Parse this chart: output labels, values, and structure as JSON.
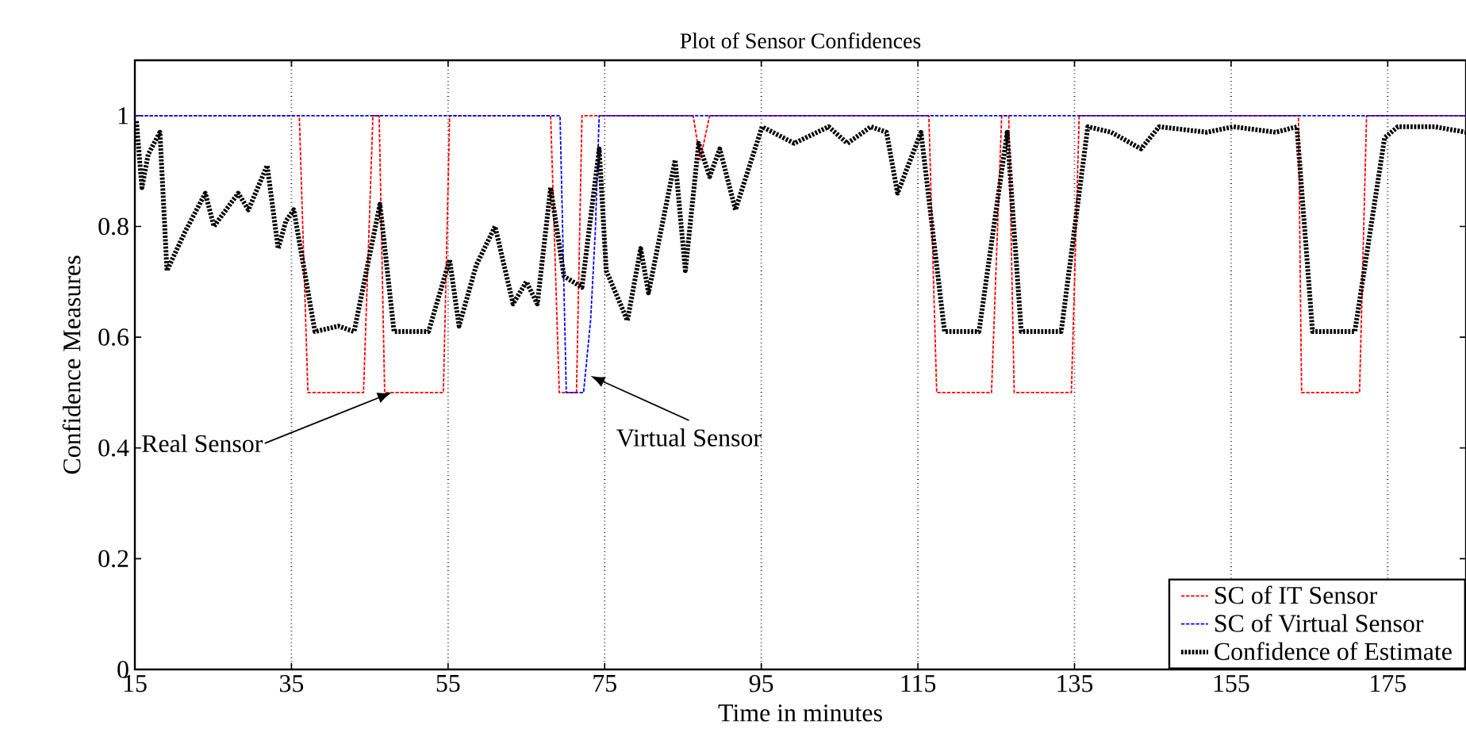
{
  "chart_data": {
    "type": "line",
    "title": "Plot of Sensor Confidences",
    "xlabel": "Time in minutes",
    "ylabel": "Confidence Measures",
    "xlim": [
      15,
      185
    ],
    "ylim": [
      0,
      1.1
    ],
    "xticks": [
      15,
      35,
      55,
      75,
      95,
      115,
      135,
      155,
      175
    ],
    "yticks": [
      0,
      0.2,
      0.4,
      0.6,
      0.8,
      1
    ],
    "grid": "x",
    "legend": "bottom right",
    "series": [
      {
        "name": "SC of IT Sensor",
        "color": "#ff0000",
        "line_style": "dashed",
        "x": [
          15,
          36.0,
          37.1,
          44.2,
          45.4,
          46.2,
          46.9,
          54.4,
          55.2,
          68.1,
          69.2,
          71.4,
          72.1,
          86.3,
          87.2,
          88.4,
          116.4,
          117.4,
          124.4,
          125.7,
          126.6,
          127.3,
          134.6,
          135.6,
          163.6,
          164.0,
          171.4,
          172.3,
          185
        ],
        "values": [
          1,
          1,
          0.5,
          0.5,
          1,
          1,
          0.5,
          0.5,
          1,
          1,
          0.5,
          0.5,
          1,
          1,
          0.92,
          1,
          1,
          0.5,
          0.5,
          1,
          1,
          0.5,
          0.5,
          1,
          1,
          0.5,
          0.5,
          1,
          1
        ]
      },
      {
        "name": "SC of Virtual Sensor",
        "color": "#0000ff",
        "line_style": "dashed",
        "x": [
          15,
          69.3,
          70.1,
          72.3,
          73.2,
          73.8,
          74.3,
          185
        ],
        "values": [
          1,
          1,
          0.5,
          0.5,
          0.63,
          0.79,
          1,
          1
        ]
      },
      {
        "name": "Confidence of Estimate",
        "color": "#000000",
        "line_style": "dotted",
        "x": [
          15.2,
          15.9,
          16.7,
          18.2,
          19.1,
          21.4,
          24,
          25.1,
          28.2,
          29.5,
          31.9,
          33.3,
          34.3,
          35.3,
          38,
          41,
          43,
          46.3,
          48.1,
          52.5,
          55.2,
          56.4,
          58.6,
          61,
          63.3,
          65,
          66.4,
          68.1,
          69.8,
          72.1,
          74.3,
          75.2,
          77.9,
          79.6,
          80.6,
          84,
          85.3,
          87,
          88.4,
          89.7,
          91.7,
          95.1,
          99.2,
          103.6,
          106,
          109,
          111,
          112.4,
          115.4,
          118.4,
          122.8,
          126.4,
          128.2,
          133.3,
          136.7,
          139.7,
          143.5,
          145.8,
          151.9,
          155.3,
          160.7,
          163.4,
          165.4,
          170.8,
          174.6,
          176.3,
          181,
          185
        ],
        "values": [
          0.99,
          0.87,
          0.93,
          0.97,
          0.72,
          0.79,
          0.86,
          0.8,
          0.86,
          0.83,
          0.91,
          0.76,
          0.81,
          0.83,
          0.61,
          0.62,
          0.61,
          0.84,
          0.61,
          0.61,
          0.74,
          0.62,
          0.73,
          0.8,
          0.66,
          0.7,
          0.66,
          0.87,
          0.71,
          0.69,
          0.94,
          0.72,
          0.63,
          0.76,
          0.68,
          0.92,
          0.72,
          0.95,
          0.89,
          0.94,
          0.83,
          0.98,
          0.95,
          0.98,
          0.95,
          0.98,
          0.97,
          0.86,
          0.97,
          0.61,
          0.61,
          0.97,
          0.61,
          0.61,
          0.98,
          0.97,
          0.94,
          0.98,
          0.97,
          0.98,
          0.97,
          0.98,
          0.61,
          0.61,
          0.96,
          0.98,
          0.98,
          0.97
        ]
      }
    ],
    "annotations": [
      {
        "text": "Real Sensor",
        "x": 47.8,
        "y": 0.5
      },
      {
        "text": "Virtual Sensor",
        "x": 73.2,
        "y": 0.53
      }
    ]
  }
}
